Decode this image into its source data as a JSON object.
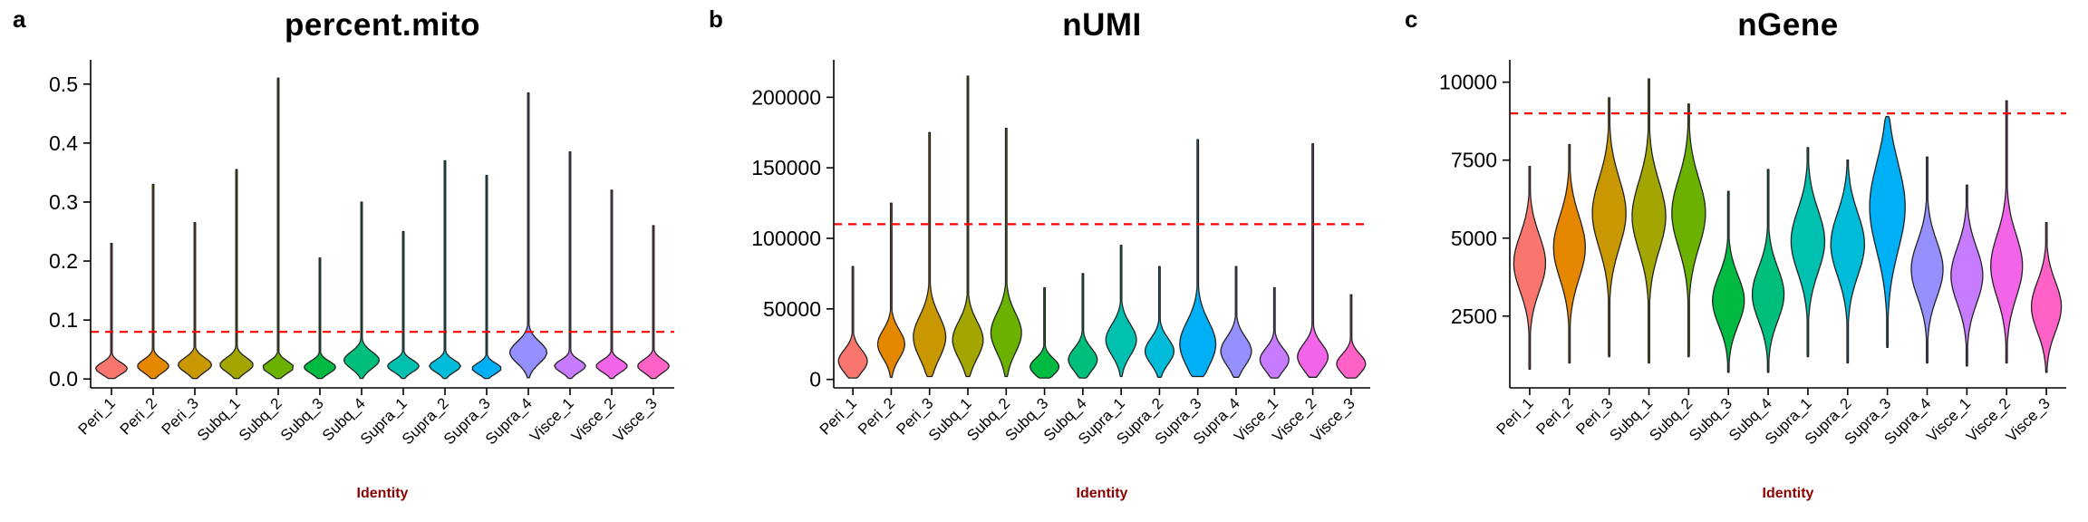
{
  "figure": {
    "background": "#ffffff",
    "cutoff_line_color": "#FF0000",
    "axis_color": "#000000",
    "identity_label_color": "#8B0000"
  },
  "chart_data": [
    {
      "type": "violin",
      "panel_letter": "a",
      "title": "percent.mito",
      "xlabel": "Identity",
      "ylabel": "",
      "ylim": [
        -0.015,
        0.535
      ],
      "yticks": [
        0.0,
        0.1,
        0.2,
        0.3,
        0.4,
        0.5
      ],
      "ytick_labels": [
        "0.0",
        "0.1",
        "0.2",
        "0.3",
        "0.4",
        "0.5"
      ],
      "cutoff": 0.08,
      "grid": false,
      "legend": "none",
      "categories": [
        "Peri_1",
        "Peri_2",
        "Peri_3",
        "Subq_1",
        "Subq_2",
        "Subq_3",
        "Subq_4",
        "Supra_1",
        "Supra_2",
        "Supra_3",
        "Supra_4",
        "Visce_1",
        "Visce_2",
        "Visce_3"
      ],
      "colors": [
        "#F8766D",
        "#E58700",
        "#C99800",
        "#A3A500",
        "#6BB100",
        "#00BA42",
        "#00BF7D",
        "#00C0AF",
        "#00BCD8",
        "#00B0F6",
        "#9590FF",
        "#C77CFF",
        "#F265E8",
        "#FF61C7"
      ],
      "violins": [
        {
          "category": "Peri_1",
          "center": 0.018,
          "sigma": 0.01,
          "min": 0.001,
          "max": 0.23,
          "width": 0.8
        },
        {
          "category": "Peri_2",
          "center": 0.022,
          "sigma": 0.011,
          "min": 0.001,
          "max": 0.33,
          "width": 0.8
        },
        {
          "category": "Peri_3",
          "center": 0.024,
          "sigma": 0.012,
          "min": 0.001,
          "max": 0.265,
          "width": 0.85
        },
        {
          "category": "Subq_1",
          "center": 0.024,
          "sigma": 0.012,
          "min": 0.001,
          "max": 0.355,
          "width": 0.85
        },
        {
          "category": "Subq_2",
          "center": 0.02,
          "sigma": 0.01,
          "min": 0.001,
          "max": 0.51,
          "width": 0.8
        },
        {
          "category": "Subq_3",
          "center": 0.02,
          "sigma": 0.01,
          "min": 0.001,
          "max": 0.205,
          "width": 0.8
        },
        {
          "category": "Subq_4",
          "center": 0.032,
          "sigma": 0.014,
          "min": 0.001,
          "max": 0.3,
          "width": 0.9
        },
        {
          "category": "Supra_1",
          "center": 0.022,
          "sigma": 0.01,
          "min": 0.001,
          "max": 0.25,
          "width": 0.8
        },
        {
          "category": "Supra_2",
          "center": 0.022,
          "sigma": 0.01,
          "min": 0.001,
          "max": 0.37,
          "width": 0.8
        },
        {
          "category": "Supra_3",
          "center": 0.018,
          "sigma": 0.009,
          "min": 0.001,
          "max": 0.345,
          "width": 0.75
        },
        {
          "category": "Supra_4",
          "center": 0.045,
          "sigma": 0.018,
          "min": 0.002,
          "max": 0.485,
          "width": 0.95
        },
        {
          "category": "Visce_1",
          "center": 0.022,
          "sigma": 0.01,
          "min": 0.001,
          "max": 0.385,
          "width": 0.8
        },
        {
          "category": "Visce_2",
          "center": 0.022,
          "sigma": 0.01,
          "min": 0.001,
          "max": 0.32,
          "width": 0.8
        },
        {
          "category": "Visce_3",
          "center": 0.022,
          "sigma": 0.011,
          "min": 0.001,
          "max": 0.26,
          "width": 0.8
        }
      ]
    },
    {
      "type": "violin",
      "panel_letter": "b",
      "title": "nUMI",
      "xlabel": "Identity",
      "ylabel": "",
      "ylim": [
        -6000,
        224000
      ],
      "yticks": [
        0,
        50000,
        100000,
        150000,
        200000
      ],
      "ytick_labels": [
        "0",
        "50000",
        "100000",
        "150000",
        "200000"
      ],
      "cutoff": 110000,
      "grid": false,
      "legend": "none",
      "categories": [
        "Peri_1",
        "Peri_2",
        "Peri_3",
        "Subq_1",
        "Subq_2",
        "Subq_3",
        "Subq_4",
        "Supra_1",
        "Supra_2",
        "Supra_3",
        "Supra_4",
        "Visce_1",
        "Visce_2",
        "Visce_3"
      ],
      "colors": [
        "#F8766D",
        "#E58700",
        "#C99800",
        "#A3A500",
        "#6BB100",
        "#00BA42",
        "#00BF7D",
        "#00C0AF",
        "#00BCD8",
        "#00B0F6",
        "#9590FF",
        "#C77CFF",
        "#F265E8",
        "#FF61C7"
      ],
      "violins": [
        {
          "category": "Peri_1",
          "center": 13000,
          "sigma": 8000,
          "min": 1000,
          "max": 80000,
          "width": 0.8
        },
        {
          "category": "Peri_2",
          "center": 25000,
          "sigma": 10000,
          "min": 1500,
          "max": 125000,
          "width": 0.75
        },
        {
          "category": "Peri_3",
          "center": 30000,
          "sigma": 15000,
          "min": 2000,
          "max": 175000,
          "width": 0.9
        },
        {
          "category": "Subq_1",
          "center": 28000,
          "sigma": 13000,
          "min": 2000,
          "max": 215000,
          "width": 0.85
        },
        {
          "category": "Subq_2",
          "center": 33000,
          "sigma": 14000,
          "min": 2000,
          "max": 178000,
          "width": 0.85
        },
        {
          "category": "Subq_3",
          "center": 9000,
          "sigma": 6000,
          "min": 1000,
          "max": 65000,
          "width": 0.8
        },
        {
          "category": "Subq_4",
          "center": 14000,
          "sigma": 8000,
          "min": 1000,
          "max": 75000,
          "width": 0.8
        },
        {
          "category": "Supra_1",
          "center": 28000,
          "sigma": 11000,
          "min": 2000,
          "max": 95000,
          "width": 0.85
        },
        {
          "category": "Supra_2",
          "center": 20000,
          "sigma": 9000,
          "min": 1500,
          "max": 80000,
          "width": 0.8
        },
        {
          "category": "Supra_3",
          "center": 25000,
          "sigma": 16000,
          "min": 2000,
          "max": 170000,
          "width": 1.0
        },
        {
          "category": "Supra_4",
          "center": 20000,
          "sigma": 10000,
          "min": 1500,
          "max": 80000,
          "width": 0.85
        },
        {
          "category": "Visce_1",
          "center": 14000,
          "sigma": 8000,
          "min": 1000,
          "max": 65000,
          "width": 0.8
        },
        {
          "category": "Visce_2",
          "center": 16000,
          "sigma": 9000,
          "min": 1500,
          "max": 167000,
          "width": 0.85
        },
        {
          "category": "Visce_3",
          "center": 11000,
          "sigma": 7000,
          "min": 1000,
          "max": 60000,
          "width": 0.8
        }
      ]
    },
    {
      "type": "violin",
      "panel_letter": "c",
      "title": "nGene",
      "xlabel": "Identity",
      "ylabel": "",
      "ylim": [
        200,
        10600
      ],
      "yticks": [
        2500,
        5000,
        7500,
        10000
      ],
      "ytick_labels": [
        "2500",
        "5000",
        "7500",
        "10000"
      ],
      "cutoff": 9000,
      "grid": false,
      "legend": "none",
      "categories": [
        "Peri_1",
        "Peri_2",
        "Peri_3",
        "Subq_1",
        "Subq_2",
        "Subq_3",
        "Subq_4",
        "Supra_1",
        "Supra_2",
        "Supra_3",
        "Supra_4",
        "Visce_1",
        "Visce_2",
        "Visce_3"
      ],
      "colors": [
        "#F8766D",
        "#E58700",
        "#C99800",
        "#A3A500",
        "#6BB100",
        "#00BA42",
        "#00BF7D",
        "#00C0AF",
        "#00BCD8",
        "#00B0F6",
        "#9590FF",
        "#C77CFF",
        "#F265E8",
        "#FF61C7"
      ],
      "violins": [
        {
          "category": "Peri_1",
          "center": 4200,
          "sigma": 900,
          "min": 800,
          "max": 7300,
          "width": 0.85
        },
        {
          "category": "Peri_2",
          "center": 4700,
          "sigma": 1000,
          "min": 1000,
          "max": 8000,
          "width": 0.85
        },
        {
          "category": "Peri_3",
          "center": 5800,
          "sigma": 1100,
          "min": 1200,
          "max": 9500,
          "width": 0.9
        },
        {
          "category": "Subq_1",
          "center": 5700,
          "sigma": 1100,
          "min": 1000,
          "max": 10100,
          "width": 0.9
        },
        {
          "category": "Subq_2",
          "center": 5800,
          "sigma": 1100,
          "min": 1200,
          "max": 9300,
          "width": 0.9
        },
        {
          "category": "Subq_3",
          "center": 3000,
          "sigma": 800,
          "min": 700,
          "max": 6500,
          "width": 0.85
        },
        {
          "category": "Subq_4",
          "center": 3200,
          "sigma": 850,
          "min": 700,
          "max": 7200,
          "width": 0.85
        },
        {
          "category": "Supra_1",
          "center": 4900,
          "sigma": 1000,
          "min": 1200,
          "max": 7900,
          "width": 0.9
        },
        {
          "category": "Supra_2",
          "center": 4800,
          "sigma": 1000,
          "min": 1000,
          "max": 7500,
          "width": 0.9
        },
        {
          "category": "Supra_3",
          "center": 6000,
          "sigma": 1400,
          "min": 1500,
          "max": 8900,
          "width": 0.95
        },
        {
          "category": "Supra_4",
          "center": 4000,
          "sigma": 900,
          "min": 1000,
          "max": 7600,
          "width": 0.85
        },
        {
          "category": "Visce_1",
          "center": 3800,
          "sigma": 900,
          "min": 900,
          "max": 6700,
          "width": 0.85
        },
        {
          "category": "Visce_2",
          "center": 4100,
          "sigma": 1000,
          "min": 1000,
          "max": 9400,
          "width": 0.85
        },
        {
          "category": "Visce_3",
          "center": 2800,
          "sigma": 800,
          "min": 700,
          "max": 5500,
          "width": 0.8
        }
      ]
    }
  ]
}
